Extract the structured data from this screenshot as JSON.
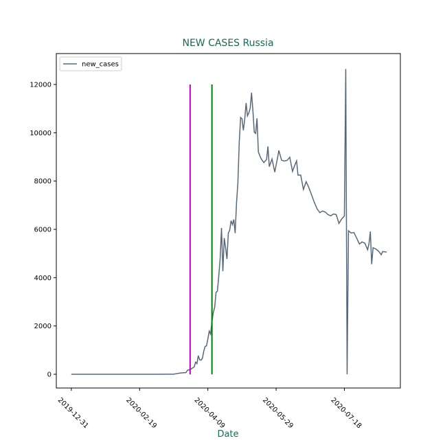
{
  "chart_data": {
    "type": "line",
    "title": "NEW CASES Russia",
    "xlabel": "Date",
    "x": [
      "2019-12-31",
      "2020-01-31",
      "2020-02-29",
      "2020-03-10",
      "2020-03-15",
      "2020-03-20",
      "2020-03-24",
      "2020-03-25",
      "2020-03-26",
      "2020-03-27",
      "2020-03-28",
      "2020-03-29",
      "2020-03-30",
      "2020-03-31",
      "2020-04-01",
      "2020-04-02",
      "2020-04-03",
      "2020-04-04",
      "2020-04-05",
      "2020-04-06",
      "2020-04-07",
      "2020-04-08",
      "2020-04-09",
      "2020-04-10",
      "2020-04-11",
      "2020-04-12",
      "2020-04-13",
      "2020-04-14",
      "2020-04-15",
      "2020-04-16",
      "2020-04-17",
      "2020-04-18",
      "2020-04-19",
      "2020-04-20",
      "2020-04-21",
      "2020-04-22",
      "2020-04-23",
      "2020-04-24",
      "2020-04-25",
      "2020-04-26",
      "2020-04-27",
      "2020-04-28",
      "2020-04-29",
      "2020-04-30",
      "2020-05-01",
      "2020-05-02",
      "2020-05-03",
      "2020-05-04",
      "2020-05-05",
      "2020-05-06",
      "2020-05-07",
      "2020-05-08",
      "2020-05-09",
      "2020-05-10",
      "2020-05-11",
      "2020-05-12",
      "2020-05-13",
      "2020-05-14",
      "2020-05-15",
      "2020-05-16",
      "2020-05-18",
      "2020-05-20",
      "2020-05-22",
      "2020-05-23",
      "2020-05-24",
      "2020-05-26",
      "2020-05-28",
      "2020-05-30",
      "2020-05-31",
      "2020-06-02",
      "2020-06-04",
      "2020-06-06",
      "2020-06-08",
      "2020-06-10",
      "2020-06-12",
      "2020-06-13",
      "2020-06-14",
      "2020-06-16",
      "2020-06-18",
      "2020-06-20",
      "2020-06-22",
      "2020-06-24",
      "2020-06-26",
      "2020-06-28",
      "2020-06-30",
      "2020-07-02",
      "2020-07-04",
      "2020-07-06",
      "2020-07-08",
      "2020-07-10",
      "2020-07-12",
      "2020-07-14",
      "2020-07-16",
      "2020-07-18",
      "2020-07-19",
      "2020-07-20",
      "2020-07-21",
      "2020-07-23",
      "2020-07-25",
      "2020-07-27",
      "2020-07-29",
      "2020-07-31",
      "2020-08-02",
      "2020-08-04",
      "2020-08-05",
      "2020-08-06",
      "2020-08-07",
      "2020-08-08",
      "2020-08-10",
      "2020-08-12",
      "2020-08-14",
      "2020-08-15",
      "2020-08-18"
    ],
    "series": [
      {
        "name": "new_cases",
        "color": "#56687a",
        "values": [
          0,
          0,
          0,
          3,
          4,
          53,
          71,
          163,
          182,
          196,
          228,
          270,
          302,
          500,
          440,
          771,
          601,
          582,
          658,
          954,
          1154,
          1175,
          1459,
          1786,
          1667,
          2186,
          2558,
          2774,
          3388,
          3448,
          4070,
          4785,
          6060,
          4268,
          5642,
          5236,
          4774,
          5849,
          5966,
          6361,
          6198,
          6411,
          5841,
          7099,
          7933,
          9623,
          10633,
          10581,
          10102,
          10559,
          11231,
          10699,
          10817,
          11012,
          11656,
          10899,
          10028,
          9974,
          10598,
          9200,
          8926,
          8764,
          8894,
          9434,
          8599,
          8915,
          8371,
          8952,
          9268,
          8863,
          8831,
          8855,
          8985,
          8404,
          8706,
          8835,
          8246,
          8246,
          7652,
          7972,
          7728,
          7425,
          7113,
          6852,
          6693,
          6760,
          6718,
          6611,
          6562,
          6635,
          6615,
          6248,
          6428,
          6556,
          12640,
          0,
          5940,
          5848,
          5871,
          5635,
          5395,
          5482,
          5427,
          5159,
          5400,
          5910,
          4560,
          5240,
          5190,
          5100,
          4950,
          5080,
          5060
        ]
      }
    ],
    "vlines": [
      {
        "x": "2020-03-27",
        "color": "#bf00bf",
        "ymin": 0,
        "ymax": 12000
      },
      {
        "x": "2020-04-12",
        "color": "#008000",
        "ymin": 0,
        "ymax": 12000
      }
    ],
    "xlim": [
      "2019-12-20",
      "2020-08-28"
    ],
    "xticks": [
      "2019-12-31",
      "2020-02-19",
      "2020-04-09",
      "2020-05-29",
      "2020-07-18"
    ],
    "ylim": [
      -569,
      13280
    ],
    "yticks": [
      0,
      2000,
      4000,
      6000,
      8000,
      10000,
      12000
    ],
    "legend": "upper left",
    "title_color": "#16695a"
  }
}
